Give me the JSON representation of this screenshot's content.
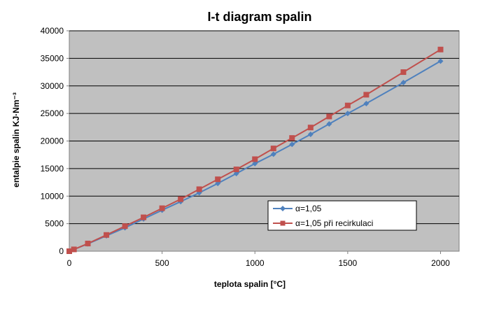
{
  "chart_data": {
    "type": "line",
    "title": "I-t diagram spalin",
    "xlabel": "teplota spalin [°C]",
    "ylabel": "entalpie spalin KJ·Nm⁻³",
    "xlim": [
      0,
      2100
    ],
    "ylim": [
      0,
      40000
    ],
    "xticks": [
      0,
      500,
      1000,
      1500,
      2000
    ],
    "yticks": [
      0,
      5000,
      10000,
      15000,
      20000,
      25000,
      30000,
      35000,
      40000
    ],
    "grid": "horizontal",
    "plot_background": "#c0c0c0",
    "legend_position": "bottom-right",
    "series": [
      {
        "name": "α=1,05",
        "color": "#4f81bd",
        "marker": "diamond",
        "x": [
          0,
          25,
          100,
          200,
          300,
          400,
          500,
          600,
          700,
          800,
          900,
          1000,
          1100,
          1200,
          1300,
          1400,
          1500,
          1600,
          1800,
          2000
        ],
        "y": [
          0,
          320,
          1330,
          2800,
          4250,
          5850,
          7450,
          9000,
          10600,
          12300,
          14100,
          15900,
          17600,
          19400,
          21200,
          23100,
          25000,
          26800,
          30600,
          34500
        ]
      },
      {
        "name": "α=1,05 při recirkulaci",
        "color": "#c0504d",
        "marker": "square",
        "x": [
          0,
          25,
          100,
          200,
          300,
          400,
          500,
          600,
          700,
          800,
          900,
          1000,
          1100,
          1200,
          1300,
          1400,
          1500,
          1600,
          1800,
          2000
        ],
        "y": [
          0,
          330,
          1400,
          2950,
          4550,
          6150,
          7800,
          9450,
          11250,
          13050,
          14850,
          16700,
          18650,
          20550,
          22450,
          24450,
          26450,
          28400,
          32500,
          36600
        ]
      }
    ]
  }
}
